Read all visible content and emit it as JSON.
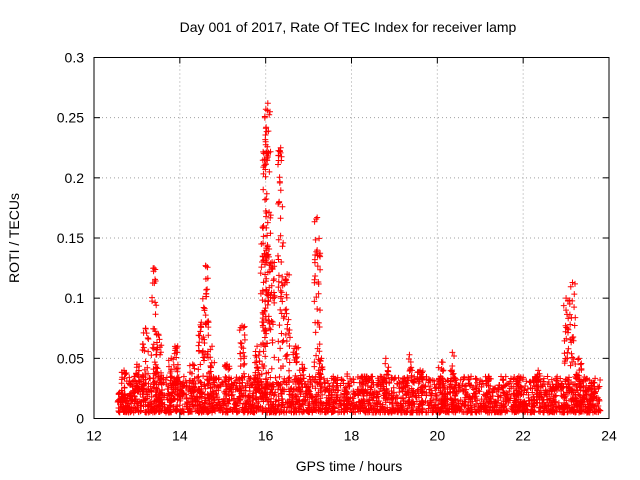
{
  "chart_data": {
    "type": "scatter",
    "title": "Day 001 of 2017, Rate Of TEC Index for receiver lamp",
    "xlabel": "GPS time / hours",
    "ylabel": "ROTI / TECUs",
    "xlim": [
      12,
      24
    ],
    "ylim": [
      0,
      0.3
    ],
    "xticks": [
      12,
      14,
      16,
      18,
      20,
      22,
      24
    ],
    "xtick_labels": [
      "12",
      "14",
      "16",
      "18",
      "20",
      "22",
      "24"
    ],
    "yticks": [
      0,
      0.05,
      0.1,
      0.15,
      0.2,
      0.25,
      0.3
    ],
    "ytick_labels": [
      "0",
      "0.05",
      "0.1",
      "0.15",
      "0.2",
      "0.25",
      "0.3"
    ],
    "grid": true,
    "marker": "+",
    "color": "#ff0000",
    "x_range_data": [
      12.55,
      23.8
    ],
    "background_band": {
      "min": 0.005,
      "max": 0.035
    },
    "spikes": [
      {
        "x": 12.7,
        "peak": 0.04
      },
      {
        "x": 13.0,
        "peak": 0.045
      },
      {
        "x": 13.2,
        "peak": 0.075
      },
      {
        "x": 13.4,
        "peak": 0.125
      },
      {
        "x": 13.5,
        "peak": 0.07
      },
      {
        "x": 13.8,
        "peak": 0.05
      },
      {
        "x": 13.95,
        "peak": 0.06
      },
      {
        "x": 14.3,
        "peak": 0.045
      },
      {
        "x": 14.5,
        "peak": 0.08
      },
      {
        "x": 14.6,
        "peak": 0.127
      },
      {
        "x": 14.75,
        "peak": 0.06
      },
      {
        "x": 15.1,
        "peak": 0.045
      },
      {
        "x": 15.45,
        "peak": 0.077
      },
      {
        "x": 15.8,
        "peak": 0.06
      },
      {
        "x": 15.95,
        "peak": 0.16
      },
      {
        "x": 16.0,
        "peak": 0.23
      },
      {
        "x": 16.05,
        "peak": 0.262
      },
      {
        "x": 16.15,
        "peak": 0.13
      },
      {
        "x": 16.35,
        "peak": 0.225
      },
      {
        "x": 16.5,
        "peak": 0.12
      },
      {
        "x": 16.7,
        "peak": 0.06
      },
      {
        "x": 16.85,
        "peak": 0.045
      },
      {
        "x": 17.2,
        "peak": 0.167
      },
      {
        "x": 17.3,
        "peak": 0.05
      },
      {
        "x": 17.9,
        "peak": 0.037
      },
      {
        "x": 18.3,
        "peak": 0.035
      },
      {
        "x": 18.8,
        "peak": 0.05
      },
      {
        "x": 19.35,
        "peak": 0.053
      },
      {
        "x": 19.6,
        "peak": 0.04
      },
      {
        "x": 20.1,
        "peak": 0.047
      },
      {
        "x": 20.35,
        "peak": 0.055
      },
      {
        "x": 21.2,
        "peak": 0.035
      },
      {
        "x": 21.9,
        "peak": 0.035
      },
      {
        "x": 22.35,
        "peak": 0.04
      },
      {
        "x": 23.0,
        "peak": 0.1
      },
      {
        "x": 23.15,
        "peak": 0.113
      },
      {
        "x": 23.3,
        "peak": 0.05
      },
      {
        "x": 23.6,
        "peak": 0.03
      }
    ]
  }
}
